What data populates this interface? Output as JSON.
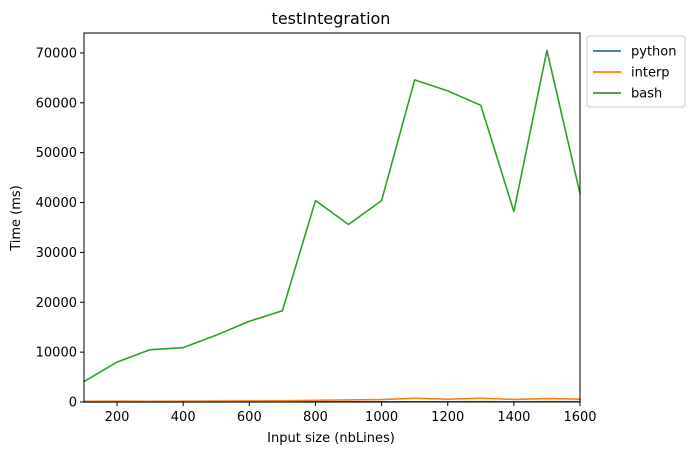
{
  "chart_data": {
    "type": "line",
    "title": "testIntegration",
    "xlabel": "Input size (nbLines)",
    "ylabel": "Time (ms)",
    "xlim": [
      100,
      1600
    ],
    "ylim": [
      0,
      74000
    ],
    "xticks": [
      200,
      400,
      600,
      800,
      1000,
      1200,
      1400,
      1600
    ],
    "xtick_labels": [
      "200",
      "400",
      "600",
      "800",
      "1000",
      "1200",
      "1400",
      "1600"
    ],
    "yticks": [
      0,
      10000,
      20000,
      30000,
      40000,
      50000,
      60000,
      70000
    ],
    "ytick_labels": [
      "0",
      "10000",
      "20000",
      "30000",
      "40000",
      "50000",
      "60000",
      "70000"
    ],
    "grid": false,
    "legend_position": "outside-top-right",
    "x": [
      100,
      200,
      300,
      400,
      500,
      600,
      700,
      800,
      900,
      1000,
      1100,
      1200,
      1300,
      1400,
      1500,
      1600
    ],
    "series": [
      {
        "name": "python",
        "color": "#1f77b4",
        "values": [
          20,
          25,
          25,
          30,
          30,
          35,
          35,
          40,
          40,
          45,
          50,
          50,
          55,
          50,
          55,
          55
        ]
      },
      {
        "name": "interp",
        "color": "#ff7f0e",
        "values": [
          150,
          170,
          150,
          160,
          190,
          210,
          230,
          350,
          420,
          480,
          750,
          560,
          750,
          520,
          680,
          560
        ]
      },
      {
        "name": "bash",
        "color": "#2ca02c",
        "values": [
          4100,
          8000,
          10500,
          10900,
          13400,
          16200,
          18300,
          40400,
          35600,
          40400,
          64600,
          62400,
          59500,
          38200,
          70500,
          41800
        ]
      }
    ]
  }
}
